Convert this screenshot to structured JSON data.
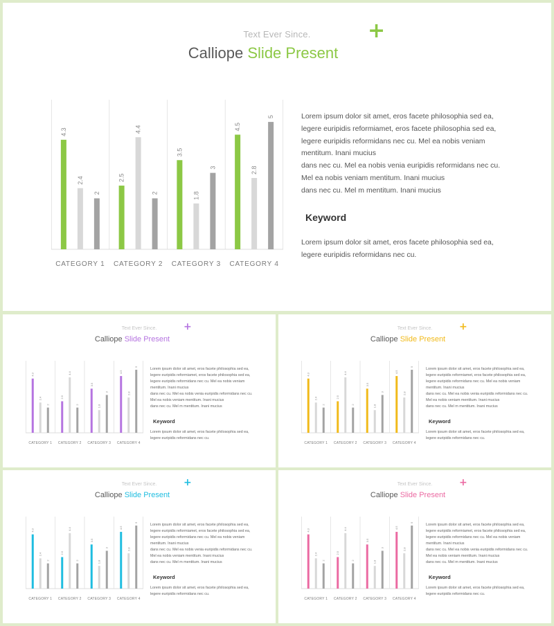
{
  "colors": {
    "main_accent": "#8cc845",
    "slide_2_accent": "#b574e0",
    "slide_3_accent": "#f1ba1a",
    "slide_4_accent": "#1fbde0",
    "slide_5_accent": "#eb6aa2",
    "series_2": "#d8d8d8",
    "series_3": "#a3a3a3"
  },
  "icons": {
    "plus": "plus-icon"
  },
  "slides": [
    {
      "subtitle": "Text Ever Since.",
      "title_plain": "Calliope ",
      "title_accent": "Slide Present",
      "paragraph_1": "Lorem ipsum dolor sit amet, eros facete philosophia sed ea,\nlegere euripidis reformiamet, eros facete philosophia sed ea,\nlegere euripidis reformidans nec cu. Mel ea nobis veniam\nmentitum. Inani mucius\ndans nec cu. Mel ea nobis venia euripidis reformidans nec cu.\nMel ea nobis veniam mentitum. Inani mucius\ndans nec cu. Mel m mentitum. Inani mucius",
      "keyword": "Keyword",
      "paragraph_2": "Lorem ipsum dolor sit amet, eros facete philosophia sed ea,\nlegere euripidis reformidans nec cu."
    },
    {
      "subtitle": "Text Ever Since.",
      "title_plain": "Calliope ",
      "title_accent": "Slide Present",
      "paragraph_1": "Lorem ipsum dolor sit amet, eros facete philosophia sed ea,\nlegere euripidis reformiamet, eros facete philosophia sed ea,\nlegere euripidis reformidans nec cu. Mel ea nobis veniam\nmentitum. Inani mucius\ndans nec cu. Mel ea nobis venia euripidis reformidans nec cu.\nMel ea nobis veniam mentitum. Inani mucius\ndans nec cu. Mel m mentitum. Inani mucius",
      "keyword": "Keyword",
      "paragraph_2": "Lorem ipsum dolor sit amet, eros facete philosophia sed ea,\nlegere euripidis reformidans nec cu."
    },
    {
      "subtitle": "Text Ever Since.",
      "title_plain": "Calliope ",
      "title_accent": "Slide Present",
      "paragraph_1": "Lorem ipsum dolor sit amet, eros facete philosophia sed ea,\nlegere euripidis reformiamet, eros facete philosophia sed ea,\nlegere euripidis reformidans nec cu. Mel ea nobis veniam\nmentitum. Inani mucius\ndans nec cu. Mel ea nobis venia euripidis reformidans nec cu.\nMel ea nobis veniam mentitum. Inani mucius\ndans nec cu. Mel m mentitum. Inani mucius",
      "keyword": "Keyword",
      "paragraph_2": "Lorem ipsum dolor sit amet, eros facete philosophia sed ea,\nlegere euripidis reformidans nec cu."
    },
    {
      "subtitle": "Text Ever Since.",
      "title_plain": "Calliope ",
      "title_accent": "Slide Present",
      "paragraph_1": "Lorem ipsum dolor sit amet, eros facete philosophia sed ea,\nlegere euripidis reformiamet, eros facete philosophia sed ea,\nlegere euripidis reformidans nec cu. Mel ea nobis veniam\nmentitum. Inani mucius\ndans nec cu. Mel ea nobis venia euripidis reformidans nec cu.\nMel ea nobis veniam mentitum. Inani mucius\ndans nec cu. Mel m mentitum. Inani mucius",
      "keyword": "Keyword",
      "paragraph_2": "Lorem ipsum dolor sit amet, eros facete philosophia sed ea,\nlegere euripidis reformidans nec cu."
    },
    {
      "subtitle": "Text Ever Since.",
      "title_plain": "Calliope ",
      "title_accent": "Slide Present",
      "paragraph_1": "Lorem ipsum dolor sit amet, eros facete philosophia sed ea,\nlegere euripidis reformiamet, eros facete philosophia sed ea,\nlegere euripidis reformidans nec cu. Mel ea nobis veniam\nmentitum. Inani mucius\ndans nec cu. Mel ea nobis venia euripidis reformidans nec cu.\nMel ea nobis veniam mentitum. Inani mucius\ndans nec cu. Mel m mentitum. Inani mucius",
      "keyword": "Keyword",
      "paragraph_2": "Lorem ipsum dolor sit amet, eros facete philosophia sed ea,\nlegere euripidis reformidans nec cu."
    }
  ],
  "chart_data": {
    "type": "bar",
    "categories": [
      "CATEGORY 1",
      "CATEGORY 2",
      "CATEGORY 3",
      "CATEGORY 4"
    ],
    "series": [
      {
        "values": [
          4.3,
          2.5,
          3.5,
          4.5
        ]
      },
      {
        "values": [
          2.4,
          4.4,
          1.8,
          2.8
        ]
      },
      {
        "values": [
          2,
          2,
          3,
          5
        ]
      }
    ],
    "ylim": [
      0,
      5.6
    ],
    "grid": "vertical category separators",
    "data_labels": true,
    "data_label_rotation": "vertical"
  }
}
